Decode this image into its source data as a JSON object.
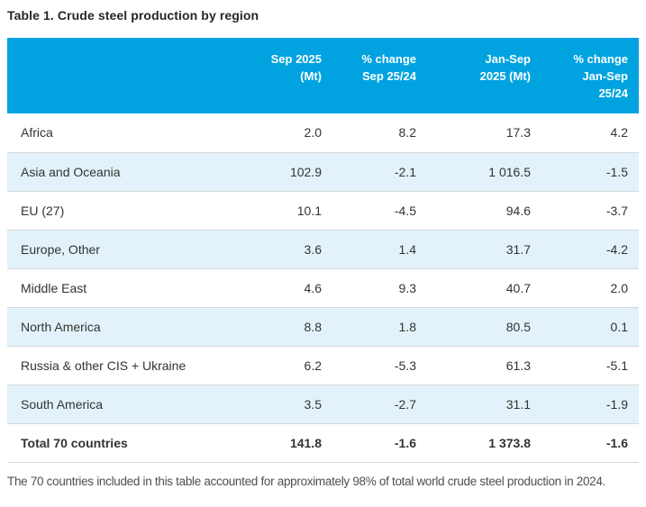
{
  "page": {
    "title": "Table 1. Crude steel production by region",
    "footnote": "The 70 countries included in this table accounted for approximately 98% of total world crude steel production in 2024."
  },
  "colors": {
    "header_background": "#00a3e0",
    "header_text": "#ffffff",
    "alt_row_background": "#e3f2fa",
    "row_border": "#d4d7d9",
    "body_text": "#333333",
    "footnote_text": "#4f4f4f"
  },
  "table": {
    "columns": [
      {
        "label": ""
      },
      {
        "label": "Sep 2025\n(Mt)"
      },
      {
        "label": "% change\nSep 25/24"
      },
      {
        "label": "Jan-Sep\n2025 (Mt)"
      },
      {
        "label": "% change\nJan-Sep\n25/24"
      }
    ],
    "rows": [
      {
        "region": "Africa",
        "sep_2025_mt": "2.0",
        "pct_change_sep_25_24": "8.2",
        "jan_sep_2025_mt": "17.3",
        "pct_change_jan_sep_25_24": "4.2"
      },
      {
        "region": "Asia and Oceania",
        "sep_2025_mt": "102.9",
        "pct_change_sep_25_24": "-2.1",
        "jan_sep_2025_mt": "1 016.5",
        "pct_change_jan_sep_25_24": "-1.5"
      },
      {
        "region": "EU (27)",
        "sep_2025_mt": "10.1",
        "pct_change_sep_25_24": "-4.5",
        "jan_sep_2025_mt": "94.6",
        "pct_change_jan_sep_25_24": "-3.7"
      },
      {
        "region": "Europe, Other",
        "sep_2025_mt": "3.6",
        "pct_change_sep_25_24": "1.4",
        "jan_sep_2025_mt": "31.7",
        "pct_change_jan_sep_25_24": "-4.2"
      },
      {
        "region": "Middle East",
        "sep_2025_mt": "4.6",
        "pct_change_sep_25_24": "9.3",
        "jan_sep_2025_mt": "40.7",
        "pct_change_jan_sep_25_24": "2.0"
      },
      {
        "region": "North America",
        "sep_2025_mt": "8.8",
        "pct_change_sep_25_24": "1.8",
        "jan_sep_2025_mt": "80.5",
        "pct_change_jan_sep_25_24": "0.1"
      },
      {
        "region": "Russia & other CIS + Ukraine",
        "sep_2025_mt": "6.2",
        "pct_change_sep_25_24": "-5.3",
        "jan_sep_2025_mt": "61.3",
        "pct_change_jan_sep_25_24": "-5.1"
      },
      {
        "region": "South America",
        "sep_2025_mt": "3.5",
        "pct_change_sep_25_24": "-2.7",
        "jan_sep_2025_mt": "31.1",
        "pct_change_jan_sep_25_24": "-1.9"
      }
    ],
    "total": {
      "region": "Total 70 countries",
      "sep_2025_mt": "141.8",
      "pct_change_sep_25_24": "-1.6",
      "jan_sep_2025_mt": "1 373.8",
      "pct_change_jan_sep_25_24": "-1.6"
    }
  }
}
